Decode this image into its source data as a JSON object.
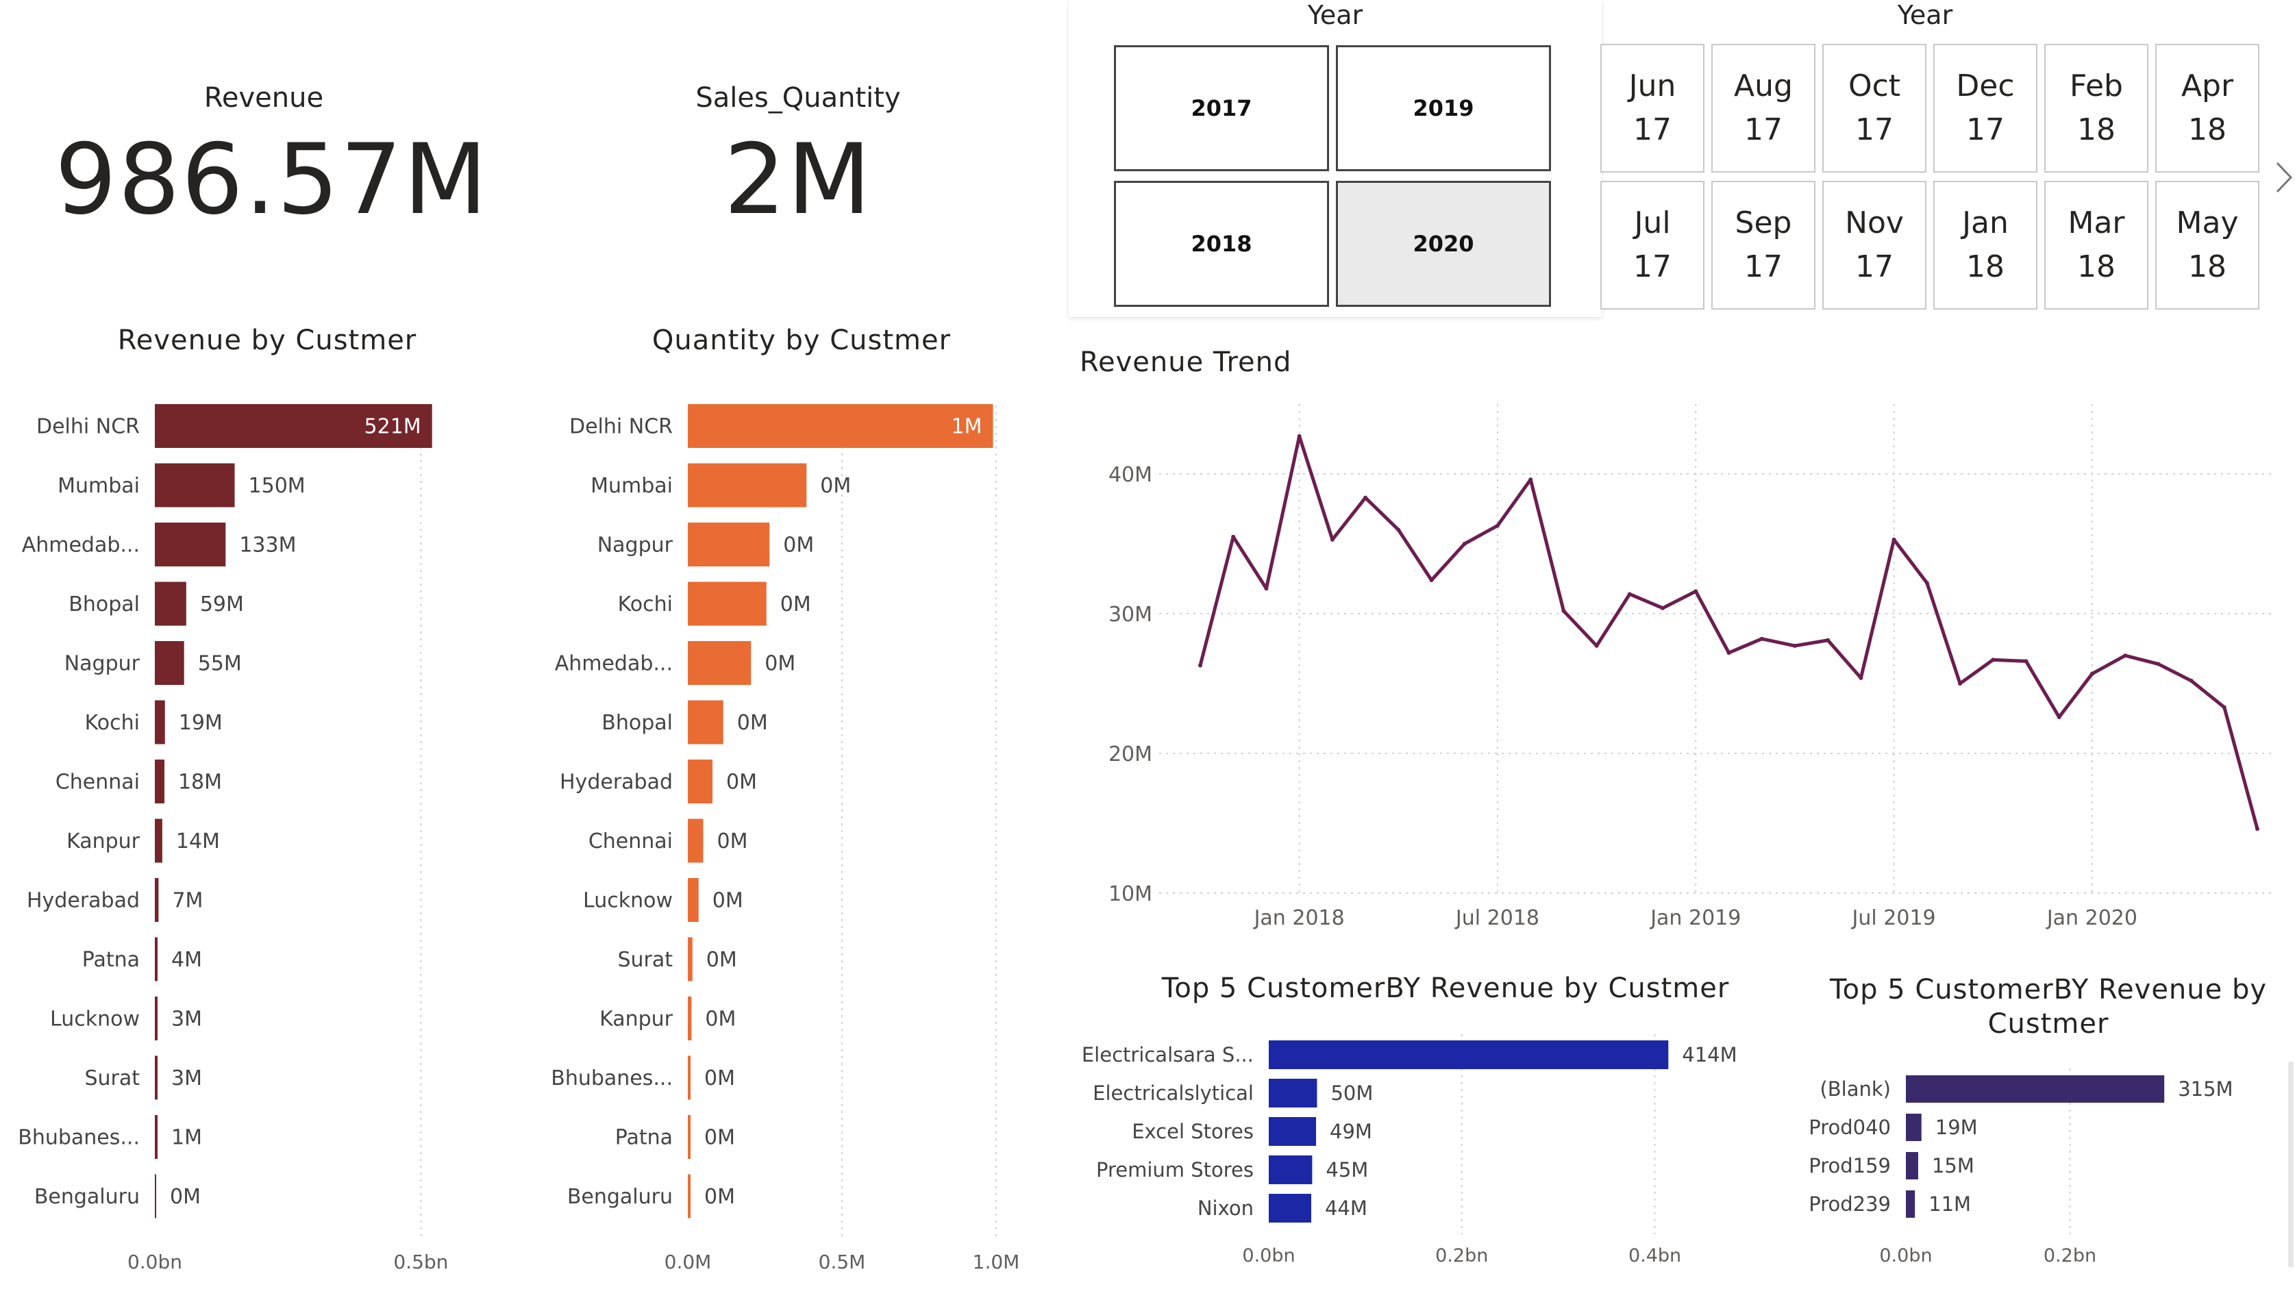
{
  "kpis": {
    "revenue": {
      "label": "Revenue",
      "value": "986.57M"
    },
    "sales_quantity": {
      "label": "Sales_Quantity",
      "value": "2M"
    }
  },
  "year_slicer": {
    "header": "Year",
    "options": [
      "2017",
      "2019",
      "2018",
      "2020"
    ],
    "selected": "2020"
  },
  "month_slicer": {
    "header": "Year",
    "row1": [
      [
        "Jun",
        "17"
      ],
      [
        "Aug",
        "17"
      ],
      [
        "Oct",
        "17"
      ],
      [
        "Dec",
        "17"
      ],
      [
        "Feb",
        "18"
      ],
      [
        "Apr",
        "18"
      ]
    ],
    "row2": [
      [
        "Jul",
        "17"
      ],
      [
        "Sep",
        "17"
      ],
      [
        "Nov",
        "17"
      ],
      [
        "Jan",
        "18"
      ],
      [
        "Mar",
        "18"
      ],
      [
        "May",
        "18"
      ]
    ],
    "next_icon": "chevron-right-icon"
  },
  "colors": {
    "revenue_bar": "#74262b",
    "quantity_bar": "#e96c34",
    "trend_line": "#6b1f4f",
    "top5_bar": "#1c27a6",
    "top5_product_bar": "#3b2a6b",
    "grid": "#d0d0d0",
    "axis_text": "#605e5c"
  },
  "chart_data": [
    {
      "id": "revenue_by_customer",
      "type": "bar",
      "orientation": "horizontal",
      "title": "Revenue by Custmer",
      "categories": [
        "Delhi NCR",
        "Mumbai",
        "Ahmedab...",
        "Bhopal",
        "Nagpur",
        "Kochi",
        "Chennai",
        "Kanpur",
        "Hyderabad",
        "Patna",
        "Lucknow",
        "Surat",
        "Bhubanes...",
        "Bengaluru"
      ],
      "values": [
        521,
        150,
        133,
        59,
        55,
        19,
        18,
        14,
        7,
        4,
        3,
        3,
        1,
        0
      ],
      "value_unit": "M",
      "data_labels": [
        "521M",
        "150M",
        "133M",
        "59M",
        "55M",
        "19M",
        "18M",
        "14M",
        "7M",
        "4M",
        "3M",
        "3M",
        "1M",
        "0M"
      ],
      "xlim": [
        0,
        560
      ],
      "ticks": [
        {
          "value": 0,
          "label": "0.0bn"
        },
        {
          "value": 500,
          "label": "0.5bn"
        }
      ],
      "grid": true
    },
    {
      "id": "quantity_by_customer",
      "type": "bar",
      "orientation": "horizontal",
      "title": "Quantity by Custmer",
      "categories": [
        "Delhi NCR",
        "Mumbai",
        "Nagpur",
        "Kochi",
        "Ahmedab...",
        "Bhopal",
        "Hyderabad",
        "Chennai",
        "Lucknow",
        "Surat",
        "Kanpur",
        "Bhubanes...",
        "Patna",
        "Bengaluru"
      ],
      "values": [
        0.99,
        0.385,
        0.265,
        0.255,
        0.205,
        0.115,
        0.08,
        0.05,
        0.035,
        0.015,
        0.012,
        0.008,
        0.005,
        0.002
      ],
      "value_unit": "M",
      "data_labels": [
        "1M",
        "0M",
        "0M",
        "0M",
        "0M",
        "0M",
        "0M",
        "0M",
        "0M",
        "0M",
        "0M",
        "0M",
        "0M",
        "0M"
      ],
      "xlim": [
        0,
        1.0
      ],
      "ticks": [
        {
          "value": 0,
          "label": "0.0M"
        },
        {
          "value": 0.5,
          "label": "0.5M"
        },
        {
          "value": 1.0,
          "label": "1.0M"
        }
      ],
      "grid": true
    },
    {
      "id": "revenue_trend",
      "type": "line",
      "title": "Revenue Trend",
      "x": [
        "2017-10",
        "2017-11",
        "2017-12",
        "2018-01",
        "2018-02",
        "2018-03",
        "2018-04",
        "2018-05",
        "2018-06",
        "2018-07",
        "2018-08",
        "2018-09",
        "2018-10",
        "2018-11",
        "2018-12",
        "2019-01",
        "2019-02",
        "2019-03",
        "2019-04",
        "2019-05",
        "2019-06",
        "2019-07",
        "2019-08",
        "2019-09",
        "2019-10",
        "2019-11",
        "2019-12",
        "2020-01",
        "2020-02",
        "2020-03",
        "2020-04",
        "2020-05",
        "2020-06"
      ],
      "series": [
        {
          "values": [
            26.3,
            35.5,
            31.8,
            42.7,
            35.3,
            38.3,
            36.0,
            32.4,
            35.0,
            36.3,
            39.6,
            30.2,
            27.7,
            31.4,
            30.4,
            31.6,
            27.2,
            28.2,
            27.7,
            28.1,
            25.4,
            35.3,
            32.2,
            25.0,
            26.7,
            26.6,
            22.6,
            25.7,
            27.0,
            26.4,
            25.2,
            23.3,
            14.6
          ]
        }
      ],
      "value_unit": "M",
      "ylim": [
        10,
        45
      ],
      "yticks": [
        {
          "value": 10,
          "label": "10M"
        },
        {
          "value": 20,
          "label": "20M"
        },
        {
          "value": 30,
          "label": "30M"
        },
        {
          "value": 40,
          "label": "40M"
        }
      ],
      "xticks": [
        {
          "value": "2018-01",
          "label": "Jan 2018"
        },
        {
          "value": "2018-07",
          "label": "Jul 2018"
        },
        {
          "value": "2019-01",
          "label": "Jan 2019"
        },
        {
          "value": "2019-07",
          "label": "Jul 2019"
        },
        {
          "value": "2020-01",
          "label": "Jan 2020"
        }
      ],
      "grid": true
    },
    {
      "id": "top5_customer_by_revenue",
      "type": "bar",
      "orientation": "horizontal",
      "title": "Top 5 CustomerBY Revenue by Custmer",
      "categories": [
        "Electricalsara S...",
        "Electricalslytical",
        "Excel Stores",
        "Premium Stores",
        "Nixon"
      ],
      "values": [
        414,
        50,
        49,
        45,
        44
      ],
      "value_unit": "M",
      "data_labels": [
        "414M",
        "50M",
        "49M",
        "45M",
        "44M"
      ],
      "xlim": [
        0,
        450
      ],
      "ticks": [
        {
          "value": 0,
          "label": "0.0bn"
        },
        {
          "value": 200,
          "label": "0.2bn"
        },
        {
          "value": 400,
          "label": "0.4bn"
        }
      ],
      "grid": true
    },
    {
      "id": "top5_product_by_revenue",
      "type": "bar",
      "orientation": "horizontal",
      "title": "Top 5 CustomerBY Revenue by Custmer",
      "categories": [
        "(Blank)",
        "Prod040",
        "Prod159",
        "Prod239"
      ],
      "values": [
        315,
        19,
        15,
        11
      ],
      "value_unit": "M",
      "data_labels": [
        "315M",
        "19M",
        "15M",
        "11M"
      ],
      "xlim": [
        0,
        390
      ],
      "ticks": [
        {
          "value": 0,
          "label": "0.0bn"
        },
        {
          "value": 200,
          "label": "0.2bn"
        }
      ],
      "grid": true
    }
  ]
}
